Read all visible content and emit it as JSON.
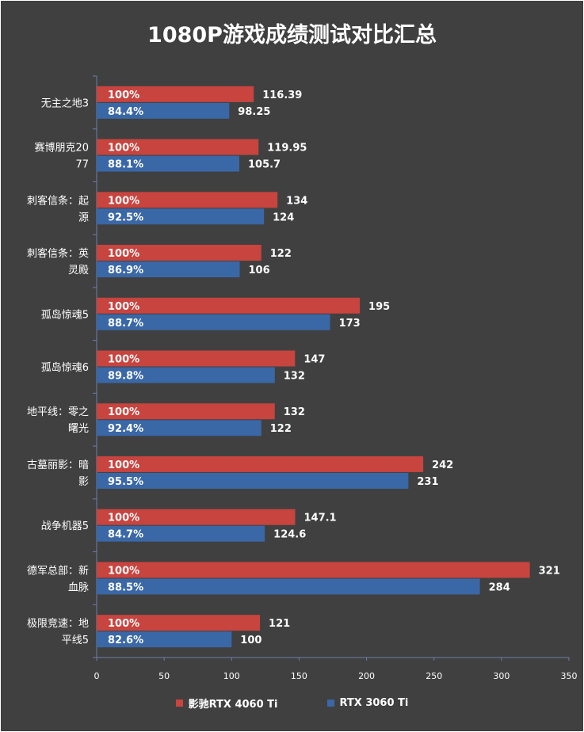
{
  "colors": {
    "background": "#404040",
    "series_a": "#c8443f",
    "series_b": "#3a67a6",
    "text": "#ffffff",
    "axis": "#6b7fa8"
  },
  "chart_data": {
    "type": "bar",
    "orientation": "horizontal",
    "title": "1080P游戏成绩测试对比汇总",
    "categories": [
      "无主之地3",
      "赛博朋克2077",
      "刺客信条：起源",
      "刺客信条：英灵殿",
      "孤岛惊魂5",
      "孤岛惊魂6",
      "地平线：零之曙光",
      "古墓丽影：暗影",
      "战争机器5",
      "德军总部：新血脉",
      "极限竞速：地平线5"
    ],
    "series": [
      {
        "name": "影驰RTX 4060 Ti",
        "values": [
          116.39,
          119.95,
          134,
          122,
          195,
          147,
          132,
          242,
          147.1,
          321,
          121
        ],
        "value_labels": [
          "116.39",
          "119.95",
          "134",
          "122",
          "195",
          "147",
          "132",
          "242",
          "147.1",
          "321",
          "121"
        ],
        "percent_labels": [
          "100%",
          "100%",
          "100%",
          "100%",
          "100%",
          "100%",
          "100%",
          "100%",
          "100%",
          "100%",
          "100%"
        ]
      },
      {
        "name": "RTX 3060 Ti",
        "values": [
          98.25,
          105.7,
          124,
          106,
          173,
          132,
          122,
          231,
          124.6,
          284,
          100
        ],
        "value_labels": [
          "98.25",
          "105.7",
          "124",
          "106",
          "173",
          "132",
          "122",
          "231",
          "124.6",
          "284",
          "100"
        ],
        "percent_labels": [
          "84.4%",
          "88.1%",
          "92.5%",
          "86.9%",
          "88.7%",
          "89.8%",
          "92.4%",
          "95.5%",
          "84.7%",
          "88.5%",
          "82.6%"
        ]
      }
    ],
    "xlim": [
      0,
      350
    ],
    "xticks": [
      "0",
      "50",
      "100",
      "150",
      "200",
      "250",
      "300",
      "350"
    ],
    "grid": false,
    "legend": "bottom"
  }
}
